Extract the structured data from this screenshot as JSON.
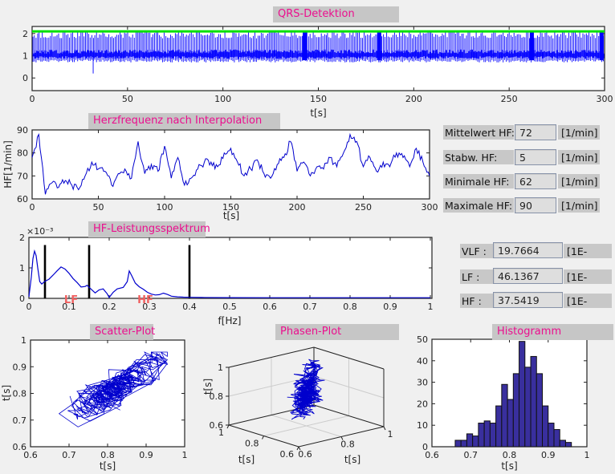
{
  "titles": {
    "qrs": "QRS-Detektion",
    "herz": "Herzfrequenz nach Interpolation",
    "spektrum": "HF-Leistungsspektrum",
    "scatter": "Scatter-Plot",
    "phasen": "Phasen-Plot",
    "histogramm": "Histogramm"
  },
  "stats": {
    "rows": [
      {
        "label": "Mittelwert HF:",
        "value": "72",
        "unit": "[1/min]"
      },
      {
        "label": "Stabw. HF:",
        "value": "5",
        "unit": "[1/min]"
      },
      {
        "label": "Minimale HF:",
        "value": "62",
        "unit": "[1/min]"
      },
      {
        "label": "Maximale HF:",
        "value": "90",
        "unit": "[1/min]"
      }
    ]
  },
  "spectral_values": {
    "rows": [
      {
        "label": "VLF :",
        "value": "19.7664",
        "unit": "[1E-"
      },
      {
        "label": "LF :",
        "value": "46.1367",
        "unit": "[1E-"
      },
      {
        "label": "HF :",
        "value": "37.5419",
        "unit": "[1E-"
      }
    ]
  },
  "colors": {
    "window_bg": "#f0f0f0",
    "panel_gray": "#c8c8c8",
    "title_magenta": "#eb0f8e",
    "axis_color": "#222222",
    "plot_blue": "#0000cd",
    "ecg_blue": "#0000ff",
    "threshold_green": "#00e000",
    "hist_fill": "#392f9e",
    "band_label_red": "#f06060",
    "grid3d_gray": "#cccccc"
  },
  "chart_data": [
    {
      "id": "qrs",
      "type": "line",
      "title": "QRS-Detektion",
      "xlabel": "t[s]",
      "xlim": [
        0,
        300
      ],
      "x_ticks": [
        0,
        50,
        100,
        150,
        200,
        250,
        300
      ],
      "ylim": [
        -0.57,
        2.32
      ],
      "y_ticks": [
        0,
        1,
        2
      ],
      "threshold_line": {
        "y": 2.1,
        "color": "#00e000"
      },
      "signal": {
        "kind": "ecg",
        "n_beats": 360,
        "rr_mean_s": 0.833,
        "rr_sd_s": 0.05,
        "r_peak_range": [
          1.78,
          2.12
        ],
        "s_trough_range": [
          0.7,
          0.82
        ],
        "baseline_band": [
          0.86,
          1.28
        ],
        "artifact": {
          "t": 32,
          "y_min": 0.2
        },
        "burst_times": [
          143,
          182,
          262,
          298.5
        ]
      }
    },
    {
      "id": "herzfrequenz",
      "type": "line",
      "title": "Herzfrequenz nach Interpolation",
      "xlabel": "t[s]",
      "ylabel": "HF[1/min]",
      "xlim": [
        0,
        300
      ],
      "x_ticks": [
        0,
        50,
        100,
        150,
        200,
        250,
        300
      ],
      "ylim": [
        60,
        90
      ],
      "y_ticks": [
        60,
        70,
        80,
        90
      ],
      "anchor_step_s": 5,
      "anchors_bpm": [
        78,
        88,
        62,
        67,
        65,
        68,
        66,
        64,
        70,
        76,
        73,
        72,
        66,
        71,
        73,
        69,
        85,
        71,
        75,
        72,
        83,
        69,
        78,
        66,
        69,
        73,
        76,
        76,
        74,
        80,
        82,
        76,
        70,
        73,
        77,
        71,
        69,
        75,
        78,
        85,
        72,
        76,
        70,
        74,
        73,
        78,
        74,
        80,
        88,
        85,
        74,
        78,
        72,
        76,
        74,
        80,
        78,
        74,
        82,
        76,
        70
      ]
    },
    {
      "id": "spektrum",
      "type": "line",
      "title": "HF-Leistungsspektrum",
      "xlabel": "f[Hz]",
      "xlim": [
        0,
        1
      ],
      "x_ticks": [
        0,
        0.1,
        0.2,
        0.3,
        0.4,
        0.5,
        0.6,
        0.7,
        0.8,
        0.9,
        1
      ],
      "ylim_milli": [
        0,
        2
      ],
      "y_ticks_milli": [
        0,
        1,
        2
      ],
      "y_scale_label": "×10⁻³",
      "band_lines_hz": [
        0.04,
        0.15,
        0.4
      ],
      "band_line_top_milli": 1.75,
      "band_labels": [
        {
          "text": "LF",
          "f": 0.105
        },
        {
          "text": "HF",
          "f": 0.29
        }
      ],
      "points_f_milli": [
        [
          0,
          0.05
        ],
        [
          0.006,
          0.7
        ],
        [
          0.01,
          1.3
        ],
        [
          0.014,
          1.55
        ],
        [
          0.018,
          1.4
        ],
        [
          0.022,
          1.0
        ],
        [
          0.027,
          0.55
        ],
        [
          0.032,
          0.47
        ],
        [
          0.04,
          0.56
        ],
        [
          0.05,
          0.63
        ],
        [
          0.06,
          0.76
        ],
        [
          0.07,
          0.9
        ],
        [
          0.08,
          1.03
        ],
        [
          0.09,
          0.96
        ],
        [
          0.1,
          0.82
        ],
        [
          0.11,
          0.65
        ],
        [
          0.12,
          0.52
        ],
        [
          0.13,
          0.37
        ],
        [
          0.14,
          0.39
        ],
        [
          0.145,
          0.43
        ],
        [
          0.155,
          0.3
        ],
        [
          0.165,
          0.18
        ],
        [
          0.175,
          0.28
        ],
        [
          0.185,
          0.31
        ],
        [
          0.195,
          0.15
        ],
        [
          0.2,
          0.03
        ],
        [
          0.21,
          0.2
        ],
        [
          0.22,
          0.31
        ],
        [
          0.235,
          0.36
        ],
        [
          0.245,
          0.55
        ],
        [
          0.25,
          0.9
        ],
        [
          0.257,
          0.72
        ],
        [
          0.265,
          0.5
        ],
        [
          0.275,
          0.38
        ],
        [
          0.285,
          0.3
        ],
        [
          0.295,
          0.2
        ],
        [
          0.305,
          0.14
        ],
        [
          0.315,
          0.11
        ],
        [
          0.325,
          0.12
        ],
        [
          0.335,
          0.17
        ],
        [
          0.345,
          0.13
        ],
        [
          0.355,
          0.07
        ],
        [
          0.37,
          0.05
        ],
        [
          0.385,
          0.04
        ],
        [
          0.4,
          0.035
        ],
        [
          0.43,
          0.03
        ],
        [
          0.5,
          0.025
        ],
        [
          0.6,
          0.022
        ],
        [
          0.7,
          0.022
        ],
        [
          0.8,
          0.02
        ],
        [
          0.9,
          0.02
        ],
        [
          1,
          0.02
        ]
      ]
    },
    {
      "id": "scatter",
      "type": "scatter",
      "title": "Scatter-Plot",
      "xlabel": "t[s]",
      "ylabel": "t[s]",
      "xlim": [
        0.6,
        1
      ],
      "ylim": [
        0.6,
        1
      ],
      "x_ticks": [
        0.6,
        0.7,
        0.8,
        0.9,
        1
      ],
      "y_ticks": [
        0.6,
        0.7,
        0.8,
        0.9,
        1
      ],
      "rr_mean_s": 0.833,
      "rr_sd_s": 0.05,
      "rr_range_s": [
        0.665,
        0.955
      ],
      "n_points": 360
    },
    {
      "id": "phasen",
      "type": "line3d",
      "title": "Phasen-Plot",
      "xlabel": "t[s]",
      "ylabel": "t[s]",
      "zlabel": "t[s]",
      "xlim": [
        0.6,
        1
      ],
      "ylim": [
        0.6,
        1
      ],
      "zlim": [
        0.6,
        1
      ],
      "ticks": [
        0.6,
        0.8,
        1
      ],
      "rr_mean_s": 0.833,
      "rr_sd_s": 0.05,
      "n_points": 358
    },
    {
      "id": "histogramm",
      "type": "bar",
      "title": "Histogramm",
      "xlabel": "t[s]",
      "xlim": [
        0.6,
        1
      ],
      "x_ticks": [
        0.6,
        0.7,
        0.8,
        0.9,
        1
      ],
      "ylim": [
        0,
        50
      ],
      "y_ticks": [
        0,
        10,
        20,
        30,
        40,
        50
      ],
      "bin_start": 0.66,
      "bin_width": 0.015,
      "values": [
        3,
        3,
        6,
        5,
        11,
        12,
        11,
        19,
        29,
        22,
        34,
        49,
        37,
        42,
        34,
        19,
        11,
        8,
        3,
        2
      ]
    }
  ]
}
